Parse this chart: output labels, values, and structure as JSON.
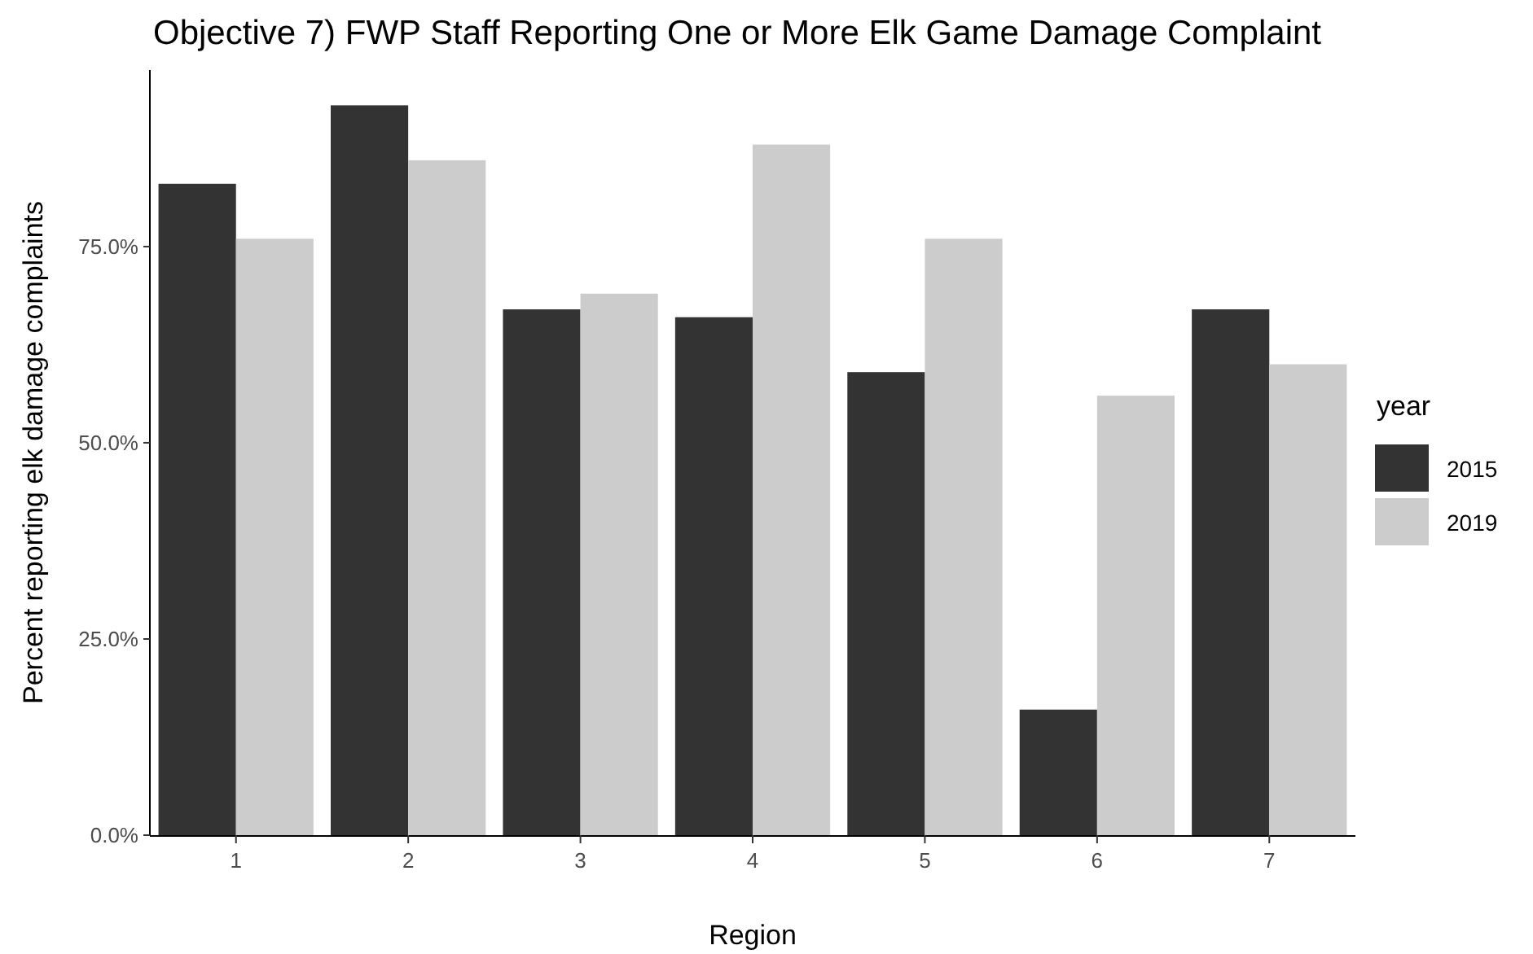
{
  "chart_data": {
    "type": "bar",
    "title": "Objective 7) FWP Staff Reporting One or More Elk Game Damage Complaint",
    "xlabel": "Region",
    "ylabel": "Percent reporting elk damage complaints",
    "legend_title": "year",
    "legend": "right",
    "grid": false,
    "categories": [
      "1",
      "2",
      "3",
      "4",
      "5",
      "6",
      "7"
    ],
    "ylim": [
      0,
      97.5
    ],
    "yticks": [
      {
        "value": 0,
        "label": "0.0%"
      },
      {
        "value": 25,
        "label": "25.0%"
      },
      {
        "value": 50,
        "label": "50.0%"
      },
      {
        "value": 75,
        "label": "75.0%"
      }
    ],
    "series": [
      {
        "name": "2015",
        "color": "#333333",
        "values": [
          83,
          93,
          67,
          66,
          59,
          16,
          67
        ]
      },
      {
        "name": "2019",
        "color": "#cccccc",
        "values": [
          76,
          86,
          69,
          88,
          76,
          56,
          60
        ]
      }
    ]
  }
}
